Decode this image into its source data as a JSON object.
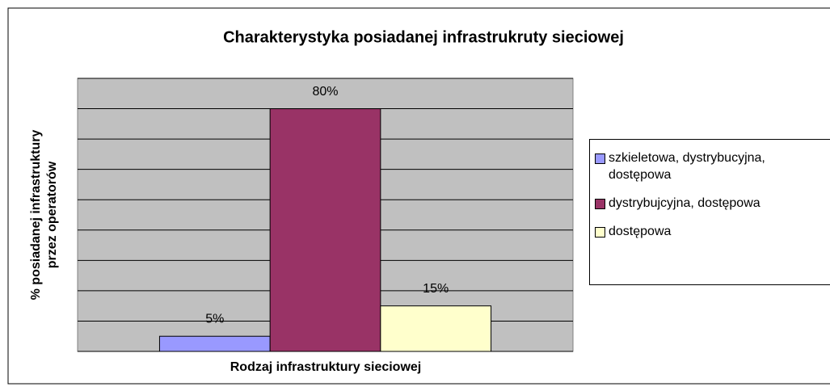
{
  "chart_data": {
    "type": "bar",
    "title": "Charakterystyka posiadanej infrastrukruty sieciowej",
    "xlabel": "Rodzaj infrastruktury sieciowej",
    "ylabel": [
      "% posiadanej infrastruktury",
      "przez operatorów"
    ],
    "series": [
      {
        "name": "szkieletowa, dystrybucyjna, dostępowa",
        "color": "#9999ff",
        "values": [
          5
        ],
        "value_labels": [
          "5%"
        ]
      },
      {
        "name": "dystrybujcyjna, dostępowa",
        "color": "#993366",
        "values": [
          80
        ],
        "value_labels": [
          "80%"
        ]
      },
      {
        "name": "dostępowa",
        "color": "#ffffcc",
        "values": [
          15
        ],
        "value_labels": [
          "15%"
        ]
      }
    ],
    "ylim": [
      0,
      90
    ],
    "yticks": [
      0,
      10,
      20,
      30,
      40,
      50,
      60,
      70,
      80,
      90
    ],
    "grid": true,
    "legend": "right",
    "plot_background": "#c0c0c0"
  }
}
